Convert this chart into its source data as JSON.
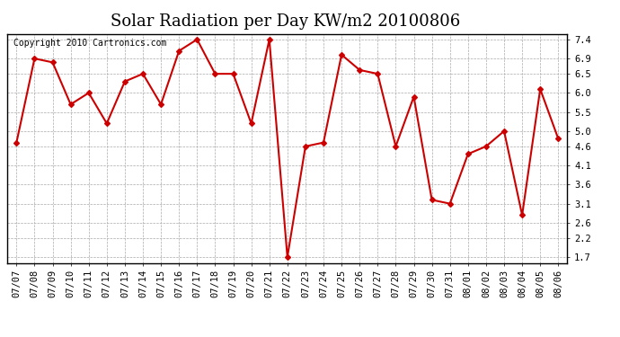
{
  "title": "Solar Radiation per Day KW/m2 20100806",
  "copyright": "Copyright 2010 Cartronics.com",
  "dates": [
    "07/07",
    "07/08",
    "07/09",
    "07/10",
    "07/11",
    "07/12",
    "07/13",
    "07/14",
    "07/15",
    "07/16",
    "07/17",
    "07/18",
    "07/19",
    "07/20",
    "07/21",
    "07/22",
    "07/23",
    "07/24",
    "07/25",
    "07/26",
    "07/27",
    "07/28",
    "07/29",
    "07/30",
    "07/31",
    "08/01",
    "08/02",
    "08/03",
    "08/04",
    "08/05",
    "08/06"
  ],
  "values": [
    4.7,
    6.9,
    6.8,
    5.7,
    6.0,
    5.2,
    6.3,
    6.5,
    5.7,
    7.1,
    7.4,
    6.5,
    6.5,
    5.2,
    7.4,
    1.7,
    4.6,
    4.7,
    7.0,
    6.6,
    6.5,
    4.6,
    5.9,
    3.2,
    3.1,
    4.4,
    4.6,
    5.0,
    2.8,
    6.1,
    4.8
  ],
  "line_color": "#cc0000",
  "marker": "D",
  "marker_size": 3,
  "bg_color": "#ffffff",
  "grid_color": "#aaaaaa",
  "yticks": [
    1.7,
    2.2,
    2.6,
    3.1,
    3.6,
    4.1,
    4.6,
    5.0,
    5.5,
    6.0,
    6.5,
    6.9,
    7.4
  ],
  "ylim": [
    1.55,
    7.55
  ],
  "title_fontsize": 13,
  "tick_fontsize": 7.5,
  "copyright_fontsize": 7
}
